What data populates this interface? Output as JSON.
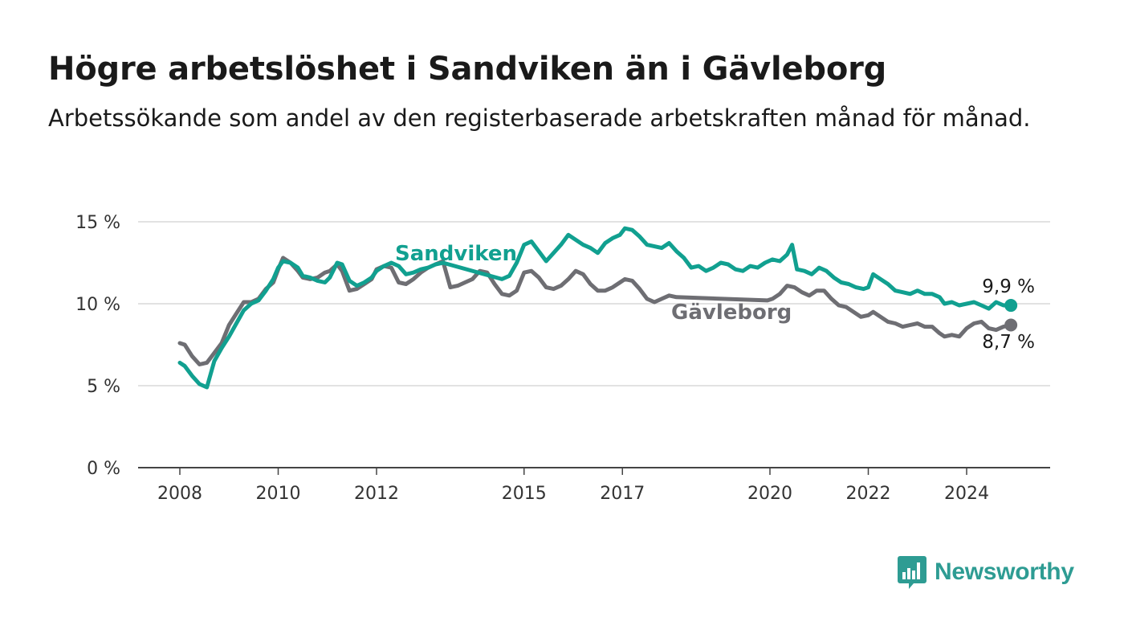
{
  "title": "Högre arbetslöshet i Sandviken än i Gävleborg",
  "subtitle": "Arbetssökande som andel av den registerbaserade arbetskraften månad för månad.",
  "brand": {
    "name": "Newsworthy",
    "color": "#2e9c93"
  },
  "chart_data": {
    "type": "line",
    "y_ticks": [
      "0 %",
      "5 %",
      "10 %",
      "15 %"
    ],
    "y_tick_values": [
      0,
      5,
      10,
      15
    ],
    "x_ticks": [
      "2008",
      "2010",
      "2012",
      "2015",
      "2017",
      "2020",
      "2022",
      "2024"
    ],
    "x_tick_values": [
      2008,
      2010,
      2012,
      2015,
      2017,
      2020,
      2022,
      2024
    ],
    "ylim": [
      0,
      15
    ],
    "xlim": [
      2007.2,
      2025.6
    ],
    "grid": true,
    "series": [
      {
        "name": "Sandviken",
        "color": "#11a090",
        "end_label": "9,9 %",
        "points": [
          [
            2008.0,
            6.4
          ],
          [
            2008.1,
            6.2
          ],
          [
            2008.25,
            5.6
          ],
          [
            2008.4,
            5.1
          ],
          [
            2008.55,
            4.9
          ],
          [
            2008.7,
            6.5
          ],
          [
            2008.85,
            7.3
          ],
          [
            2009.0,
            8.0
          ],
          [
            2009.15,
            8.8
          ],
          [
            2009.3,
            9.6
          ],
          [
            2009.45,
            10.0
          ],
          [
            2009.6,
            10.2
          ],
          [
            2009.75,
            10.8
          ],
          [
            2009.9,
            11.5
          ],
          [
            2010.0,
            12.2
          ],
          [
            2010.1,
            12.6
          ],
          [
            2010.25,
            12.5
          ],
          [
            2010.4,
            12.2
          ],
          [
            2010.5,
            11.7
          ],
          [
            2010.65,
            11.6
          ],
          [
            2010.8,
            11.4
          ],
          [
            2010.95,
            11.3
          ],
          [
            2011.05,
            11.6
          ],
          [
            2011.2,
            12.5
          ],
          [
            2011.3,
            12.4
          ],
          [
            2011.45,
            11.4
          ],
          [
            2011.6,
            11.1
          ],
          [
            2011.75,
            11.3
          ],
          [
            2011.9,
            11.6
          ],
          [
            2012.0,
            12.0
          ],
          [
            2012.15,
            12.3
          ],
          [
            2012.3,
            12.5
          ],
          [
            2012.45,
            12.3
          ],
          [
            2012.6,
            11.8
          ],
          [
            2012.75,
            11.9
          ],
          [
            2012.9,
            12.1
          ],
          [
            2013.05,
            12.2
          ],
          [
            2013.2,
            12.4
          ],
          [
            2013.35,
            12.5
          ],
          [
            2014.55,
            11.5
          ],
          [
            2014.7,
            11.7
          ],
          [
            2014.85,
            12.5
          ],
          [
            2015.0,
            13.6
          ],
          [
            2015.15,
            13.8
          ],
          [
            2015.3,
            13.2
          ],
          [
            2015.45,
            12.6
          ],
          [
            2015.6,
            13.1
          ],
          [
            2015.75,
            13.6
          ],
          [
            2015.9,
            14.2
          ],
          [
            2016.05,
            13.9
          ],
          [
            2016.2,
            13.6
          ],
          [
            2016.35,
            13.4
          ],
          [
            2016.5,
            13.1
          ],
          [
            2016.65,
            13.7
          ],
          [
            2016.8,
            14.0
          ],
          [
            2016.95,
            14.2
          ],
          [
            2017.05,
            14.6
          ],
          [
            2017.2,
            14.5
          ],
          [
            2017.35,
            14.1
          ],
          [
            2017.5,
            13.6
          ],
          [
            2017.65,
            13.5
          ],
          [
            2017.8,
            13.4
          ],
          [
            2017.95,
            13.7
          ],
          [
            2018.1,
            13.2
          ],
          [
            2018.25,
            12.8
          ],
          [
            2018.4,
            12.2
          ],
          [
            2018.55,
            12.3
          ],
          [
            2018.7,
            12.0
          ],
          [
            2018.85,
            12.2
          ],
          [
            2019.0,
            12.5
          ],
          [
            2019.15,
            12.4
          ],
          [
            2019.3,
            12.1
          ],
          [
            2019.45,
            12.0
          ],
          [
            2019.6,
            12.3
          ],
          [
            2019.75,
            12.2
          ],
          [
            2019.9,
            12.5
          ],
          [
            2020.05,
            12.7
          ],
          [
            2020.2,
            12.6
          ],
          [
            2020.35,
            13.0
          ],
          [
            2020.45,
            13.6
          ],
          [
            2020.55,
            12.1
          ],
          [
            2020.7,
            12.0
          ],
          [
            2020.85,
            11.8
          ],
          [
            2021.0,
            12.2
          ],
          [
            2021.15,
            12.0
          ],
          [
            2021.3,
            11.6
          ],
          [
            2021.45,
            11.3
          ],
          [
            2021.6,
            11.2
          ],
          [
            2021.75,
            11.0
          ],
          [
            2021.9,
            10.9
          ],
          [
            2022.0,
            11.0
          ],
          [
            2022.1,
            11.8
          ],
          [
            2022.25,
            11.5
          ],
          [
            2022.4,
            11.2
          ],
          [
            2022.55,
            10.8
          ],
          [
            2022.7,
            10.7
          ],
          [
            2022.85,
            10.6
          ],
          [
            2023.0,
            10.8
          ],
          [
            2023.15,
            10.6
          ],
          [
            2023.3,
            10.6
          ],
          [
            2023.45,
            10.4
          ],
          [
            2023.55,
            10.0
          ],
          [
            2023.7,
            10.1
          ],
          [
            2023.85,
            9.9
          ],
          [
            2024.0,
            10.0
          ],
          [
            2024.15,
            10.1
          ],
          [
            2024.3,
            9.9
          ],
          [
            2024.45,
            9.7
          ],
          [
            2024.6,
            10.1
          ],
          [
            2024.75,
            9.9
          ],
          [
            2024.9,
            9.9
          ]
        ]
      },
      {
        "name": "Gävleborg",
        "color": "#6e6e73",
        "end_label": "8,7 %",
        "points": [
          [
            2008.0,
            7.6
          ],
          [
            2008.1,
            7.5
          ],
          [
            2008.25,
            6.8
          ],
          [
            2008.4,
            6.3
          ],
          [
            2008.55,
            6.4
          ],
          [
            2008.7,
            7.0
          ],
          [
            2008.85,
            7.6
          ],
          [
            2009.0,
            8.7
          ],
          [
            2009.15,
            9.4
          ],
          [
            2009.3,
            10.1
          ],
          [
            2009.45,
            10.1
          ],
          [
            2009.6,
            10.3
          ],
          [
            2009.75,
            10.9
          ],
          [
            2009.9,
            11.3
          ],
          [
            2010.0,
            12.1
          ],
          [
            2010.1,
            12.8
          ],
          [
            2010.25,
            12.5
          ],
          [
            2010.4,
            12.0
          ],
          [
            2010.5,
            11.6
          ],
          [
            2010.65,
            11.5
          ],
          [
            2010.8,
            11.6
          ],
          [
            2010.95,
            11.9
          ],
          [
            2011.05,
            12.0
          ],
          [
            2011.2,
            12.4
          ],
          [
            2011.3,
            12.0
          ],
          [
            2011.45,
            10.8
          ],
          [
            2011.6,
            10.9
          ],
          [
            2011.75,
            11.2
          ],
          [
            2011.9,
            11.5
          ],
          [
            2012.0,
            12.1
          ],
          [
            2012.15,
            12.3
          ],
          [
            2012.3,
            12.2
          ],
          [
            2012.45,
            11.3
          ],
          [
            2012.6,
            11.2
          ],
          [
            2012.75,
            11.5
          ],
          [
            2012.9,
            11.9
          ],
          [
            2013.05,
            12.2
          ],
          [
            2013.2,
            12.4
          ],
          [
            2013.35,
            12.6
          ],
          [
            2013.5,
            11.0
          ],
          [
            2013.65,
            11.1
          ],
          [
            2013.8,
            11.3
          ],
          [
            2013.95,
            11.5
          ],
          [
            2014.1,
            12.0
          ],
          [
            2014.25,
            11.9
          ],
          [
            2014.4,
            11.2
          ],
          [
            2014.55,
            10.6
          ],
          [
            2014.7,
            10.5
          ],
          [
            2014.85,
            10.8
          ],
          [
            2015.0,
            11.9
          ],
          [
            2015.15,
            12.0
          ],
          [
            2015.3,
            11.6
          ],
          [
            2015.45,
            11.0
          ],
          [
            2015.6,
            10.9
          ],
          [
            2015.75,
            11.1
          ],
          [
            2015.9,
            11.5
          ],
          [
            2016.05,
            12.0
          ],
          [
            2016.2,
            11.8
          ],
          [
            2016.35,
            11.2
          ],
          [
            2016.5,
            10.8
          ],
          [
            2016.65,
            10.8
          ],
          [
            2016.8,
            11.0
          ],
          [
            2016.95,
            11.3
          ],
          [
            2017.05,
            11.5
          ],
          [
            2017.2,
            11.4
          ],
          [
            2017.35,
            10.9
          ],
          [
            2017.5,
            10.3
          ],
          [
            2017.65,
            10.1
          ],
          [
            2017.8,
            10.3
          ],
          [
            2017.95,
            10.5
          ],
          [
            2018.1,
            10.4
          ],
          [
            2019.95,
            10.2
          ],
          [
            2020.05,
            10.3
          ],
          [
            2020.2,
            10.6
          ],
          [
            2020.35,
            11.1
          ],
          [
            2020.5,
            11.0
          ],
          [
            2020.65,
            10.7
          ],
          [
            2020.8,
            10.5
          ],
          [
            2020.95,
            10.8
          ],
          [
            2021.1,
            10.8
          ],
          [
            2021.25,
            10.3
          ],
          [
            2021.4,
            9.9
          ],
          [
            2021.55,
            9.8
          ],
          [
            2021.7,
            9.5
          ],
          [
            2021.85,
            9.2
          ],
          [
            2022.0,
            9.3
          ],
          [
            2022.1,
            9.5
          ],
          [
            2022.25,
            9.2
          ],
          [
            2022.4,
            8.9
          ],
          [
            2022.55,
            8.8
          ],
          [
            2022.7,
            8.6
          ],
          [
            2022.85,
            8.7
          ],
          [
            2023.0,
            8.8
          ],
          [
            2023.15,
            8.6
          ],
          [
            2023.3,
            8.6
          ],
          [
            2023.45,
            8.2
          ],
          [
            2023.55,
            8.0
          ],
          [
            2023.7,
            8.1
          ],
          [
            2023.85,
            8.0
          ],
          [
            2024.0,
            8.5
          ],
          [
            2024.15,
            8.8
          ],
          [
            2024.3,
            8.9
          ],
          [
            2024.45,
            8.5
          ],
          [
            2024.6,
            8.4
          ],
          [
            2024.75,
            8.6
          ],
          [
            2024.9,
            8.7
          ]
        ]
      }
    ]
  }
}
